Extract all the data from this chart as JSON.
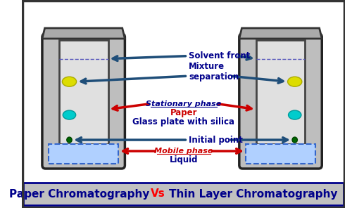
{
  "title_left": "Paper Chromatography",
  "title_vs": "Vs",
  "title_right": "Thin Layer Chromatography",
  "title_left_color": "#00008B",
  "title_vs_color": "#FF0000",
  "title_right_color": "#00008B",
  "title_fontsize": 11,
  "bg_color": "#FFFFFF",
  "bottom_bar_color": "#C0C0C0",
  "border_color": "#00008B",
  "labels": {
    "solvent_front": "Solvent front",
    "mixture_sep": "Mixture\nseparation",
    "stationary": "Stationary phase",
    "paper": "Paper",
    "glass_plate": "Glass plate with silica",
    "initial_point": "Initial point",
    "mobile_phase": "Mobile phase",
    "liquid": "Liquid"
  },
  "arrow_blue": "#1F4E79",
  "arrow_red": "#CC0000",
  "label_blue": "#00008B",
  "label_red": "#CC0000",
  "container_bg": "#BEBEBE",
  "inner_bg": "#E0E0E0",
  "liquid_color": "#B0D0FF",
  "liquid_edge": "#3366CC",
  "spot_yellow": "#DDDD00",
  "spot_cyan": "#00CCCC",
  "spot_green": "#006600"
}
